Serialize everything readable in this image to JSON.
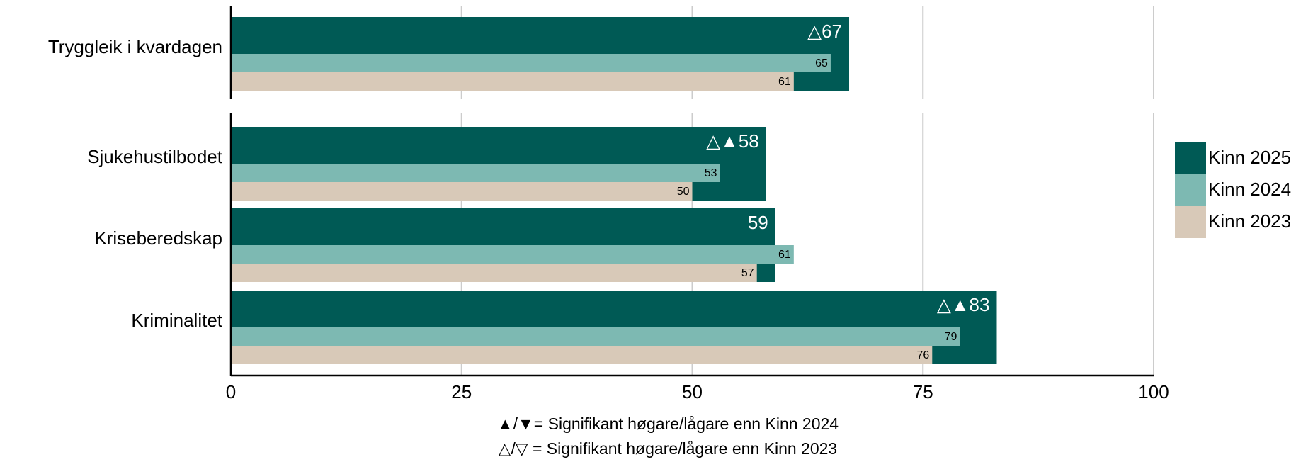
{
  "chart_data": {
    "type": "hbar",
    "categories": [
      "Tryggleik i kvardagen",
      "Sjukehustilbodet",
      "Kriseberedskap",
      "Kriminalitet"
    ],
    "series": [
      {
        "name": "Kinn 2025",
        "color": "#005a55",
        "values": [
          67,
          58,
          59,
          83
        ],
        "value_labels": [
          "△67",
          "△▲58",
          "59",
          "△▲83"
        ]
      },
      {
        "name": "Kinn 2024",
        "color": "#7db9b2",
        "values": [
          65,
          53,
          61,
          79
        ]
      },
      {
        "name": "Kinn 2023",
        "color": "#d8c9b8",
        "values": [
          61,
          50,
          57,
          76
        ]
      }
    ],
    "xlim": [
      0,
      100
    ],
    "xticks": [
      0,
      25,
      50,
      75,
      100
    ],
    "grid": true,
    "legend": "right",
    "annotations": [
      "▲/▼= Signifikant høgare/lågare enn Kinn 2024",
      "△/▽ = Signifikant høgare/lågare enn Kinn 2023"
    ]
  }
}
